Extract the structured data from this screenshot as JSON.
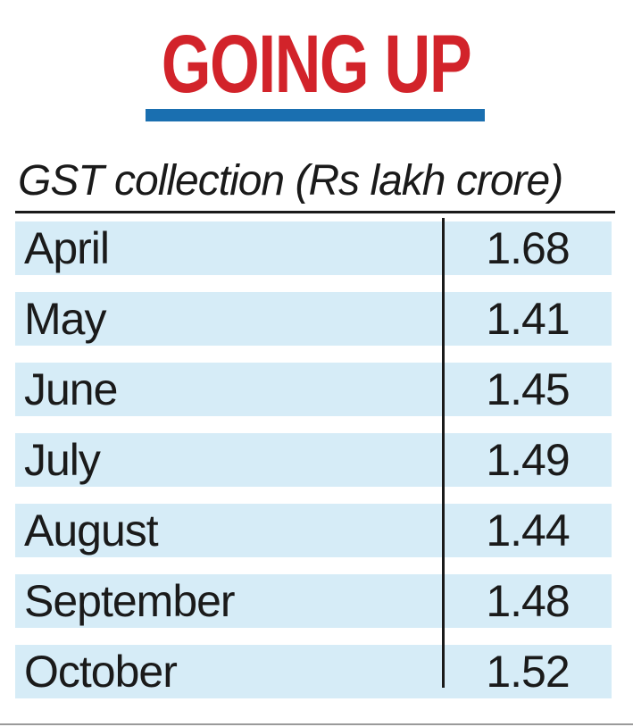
{
  "chart_data": {
    "type": "table",
    "title": "GOING UP",
    "subtitle": "GST collection (Rs lakh crore)",
    "categories": [
      "April",
      "May",
      "June",
      "July",
      "August",
      "September",
      "October"
    ],
    "values": [
      "1.68",
      "1.41",
      "1.45",
      "1.49",
      "1.44",
      "1.48",
      "1.52"
    ]
  },
  "colors": {
    "title": "#d2232a",
    "title_rule": "#1a6fb0",
    "row_fill": "#d6ecf7",
    "text": "#1a1a1a",
    "rules": "#1a1a1a",
    "bottom_rule": "#9a9a9a"
  }
}
